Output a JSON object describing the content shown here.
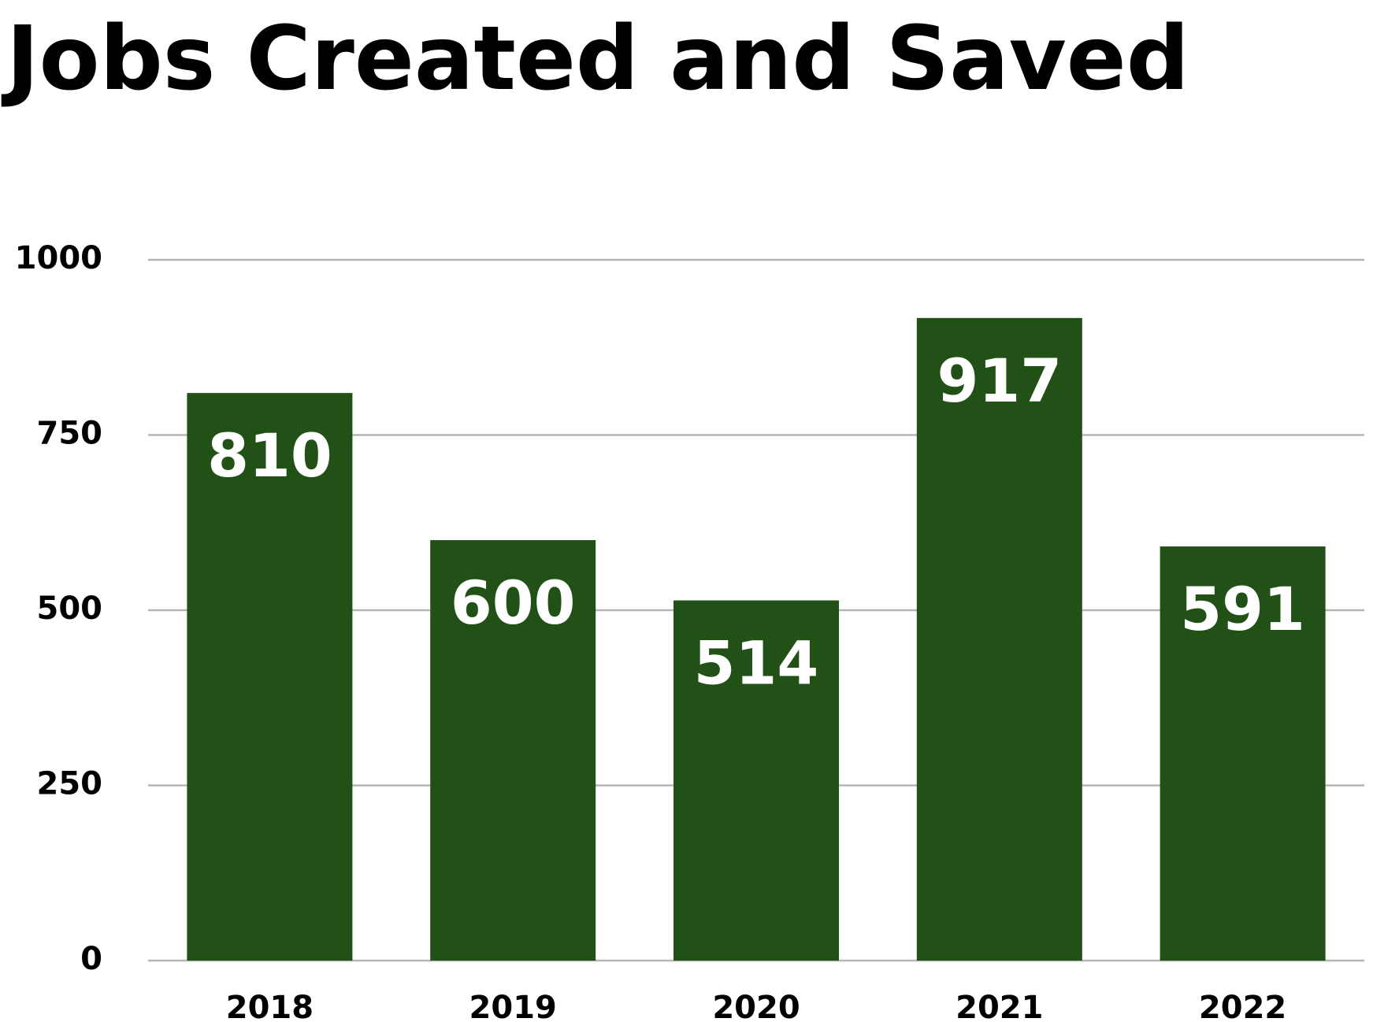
{
  "chart_data": {
    "type": "bar",
    "title": "Jobs Created and Saved",
    "categories": [
      "2018",
      "2019",
      "2020",
      "2021",
      "2022"
    ],
    "values": [
      810,
      600,
      514,
      917,
      591
    ],
    "color": "#215116",
    "ylim": [
      0,
      1000
    ],
    "yticks": [
      0,
      250,
      500,
      750,
      1000
    ],
    "grid": true
  }
}
